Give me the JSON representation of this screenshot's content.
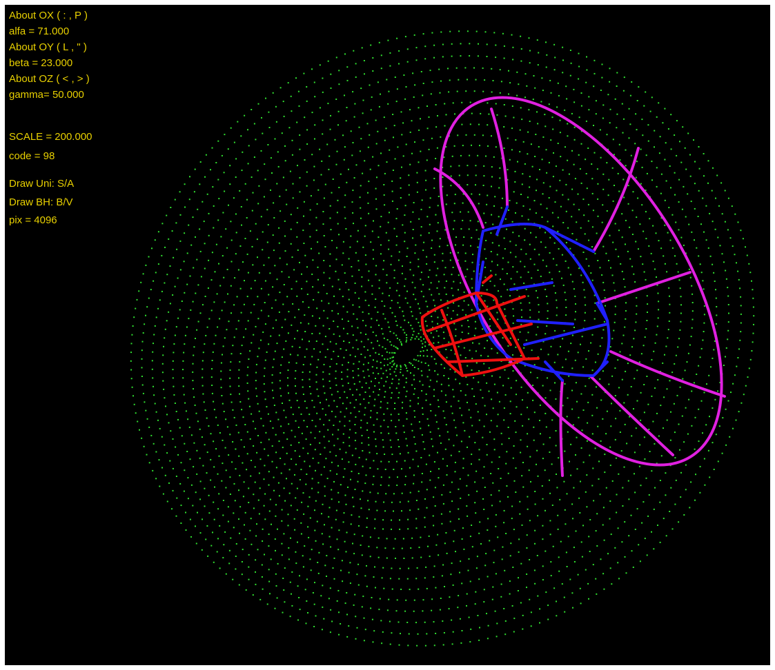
{
  "info": {
    "lines": [
      "About OX ( : , P )",
      "alfa = 71.000",
      "About OY ( L , \" )",
      "beta = 23.000",
      "About OZ ( < , > )",
      "gamma= 50.000",
      "SCALE = 200.000",
      "code = 98",
      "Draw Uni: S/A",
      "Draw BH: B/V",
      "pix = 4096"
    ]
  }
}
